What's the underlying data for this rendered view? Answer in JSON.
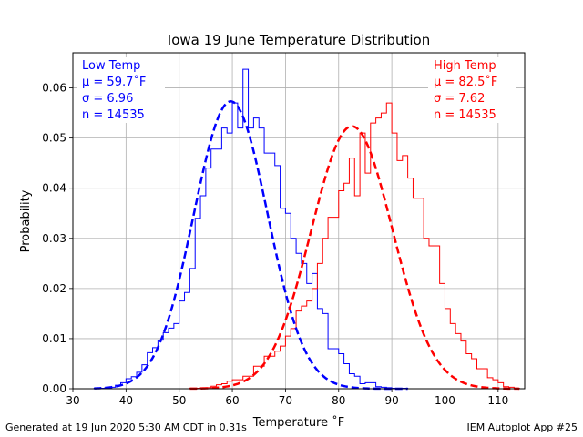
{
  "chart_data": {
    "type": "histogram",
    "title": "Iowa 19 June Temperature Distribution",
    "xlabel": "Temperature $^\\circ$F",
    "xlabel_display": "Temperature ˚F",
    "ylabel": "Probability",
    "xlim": [
      30,
      115
    ],
    "ylim": [
      0,
      0.067
    ],
    "xticks": [
      30,
      40,
      50,
      60,
      70,
      80,
      90,
      100,
      110
    ],
    "xtick_labels": [
      "30",
      "40",
      "50",
      "60",
      "70",
      "80",
      "90",
      "100",
      "110"
    ],
    "yticks": [
      0.0,
      0.01,
      0.02,
      0.03,
      0.04,
      0.05,
      0.06
    ],
    "ytick_labels": [
      "0.00",
      "0.01",
      "0.02",
      "0.03",
      "0.04",
      "0.05",
      "0.06"
    ],
    "grid": true,
    "series": [
      {
        "name": "Low Temp",
        "color": "#0000ff",
        "mu": 59.7,
        "sigma": 6.96,
        "n": 14535,
        "annotation": [
          "Low Temp",
          "μ = 59.7˚F",
          "σ = 6.96",
          "n = 14535"
        ],
        "annotation_position": "top-left",
        "bin_start": 34,
        "values": [
          0.0001,
          0.0001,
          0.0002,
          0.0003,
          0.0007,
          0.0012,
          0.002,
          0.0024,
          0.0033,
          0.0048,
          0.0072,
          0.0082,
          0.0097,
          0.0112,
          0.0121,
          0.013,
          0.0175,
          0.0192,
          0.024,
          0.034,
          0.0385,
          0.044,
          0.0478,
          0.0478,
          0.052,
          0.051,
          0.057,
          0.052,
          0.0637,
          0.052,
          0.054,
          0.052,
          0.047,
          0.047,
          0.0445,
          0.036,
          0.035,
          0.03,
          0.027,
          0.025,
          0.021,
          0.023,
          0.016,
          0.015,
          0.008,
          0.008,
          0.007,
          0.005,
          0.003,
          0.0025,
          0.001,
          0.0012,
          0.0012,
          0.0004,
          0.0003,
          0.0002,
          0.0001,
          0.0001,
          0.0001
        ]
      },
      {
        "name": "High Temp",
        "color": "#ff0000",
        "mu": 82.5,
        "sigma": 7.62,
        "n": 14535,
        "annotation": [
          "High Temp",
          "μ = 82.5˚F",
          "σ = 7.62",
          "n = 14535"
        ],
        "annotation_position": "top-right",
        "bin_start": 52,
        "values": [
          0.0001,
          0.0001,
          0.0002,
          0.0002,
          0.0005,
          0.0008,
          0.001,
          0.0015,
          0.0018,
          0.0018,
          0.0025,
          0.0025,
          0.0045,
          0.0045,
          0.0065,
          0.0065,
          0.0075,
          0.0085,
          0.0105,
          0.012,
          0.0155,
          0.0165,
          0.0175,
          0.02,
          0.025,
          0.03,
          0.0342,
          0.0342,
          0.0395,
          0.041,
          0.046,
          0.0385,
          0.051,
          0.043,
          0.053,
          0.054,
          0.055,
          0.057,
          0.051,
          0.0455,
          0.0465,
          0.042,
          0.038,
          0.038,
          0.03,
          0.0285,
          0.0285,
          0.021,
          0.016,
          0.013,
          0.011,
          0.0095,
          0.007,
          0.006,
          0.004,
          0.004,
          0.0022,
          0.0018,
          0.0012,
          0.0004,
          0.0003,
          0.0001
        ]
      }
    ]
  },
  "footer": {
    "left": "Generated at 19 Jun 2020 5:30 AM CDT in 0.31s",
    "right": "IEM Autoplot App #25"
  }
}
